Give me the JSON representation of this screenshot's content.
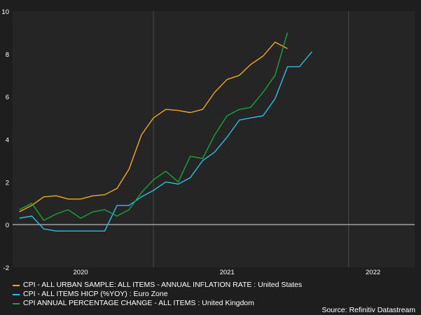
{
  "chart_data": {
    "type": "line",
    "ylim": [
      -2,
      10
    ],
    "yticks": [
      -2,
      0,
      2,
      4,
      6,
      8,
      10
    ],
    "xlim": [
      "2019-07-15",
      "2022-04-15"
    ],
    "xticks": [
      {
        "label": "2020",
        "date": "2020-01-01"
      },
      {
        "label": "2021",
        "date": "2021-01-01"
      },
      {
        "label": "2022",
        "date": "2022-01-01"
      }
    ],
    "vertical_gridlines": [
      "2020-07-01",
      "2021-11-01"
    ],
    "zero_line": true,
    "legend_position": "bottom-left",
    "source": "Source: Refinitiv Datastream",
    "series": [
      {
        "name": "CPI - ALL URBAN SAMPLE: ALL ITEMS - ANNUAL INFLATION RATE : United States",
        "color": "#f5a623",
        "points": [
          [
            "2019-08-01",
            0.6
          ],
          [
            "2019-09-01",
            0.9
          ],
          [
            "2019-10-01",
            1.3
          ],
          [
            "2019-11-01",
            1.35
          ],
          [
            "2019-12-01",
            1.2
          ],
          [
            "2020-01-01",
            1.2
          ],
          [
            "2020-02-01",
            1.35
          ],
          [
            "2020-03-01",
            1.4
          ],
          [
            "2020-04-01",
            1.7
          ],
          [
            "2020-05-01",
            2.6
          ],
          [
            "2020-06-01",
            4.2
          ],
          [
            "2020-07-01",
            5.0
          ],
          [
            "2020-08-01",
            5.4
          ],
          [
            "2020-09-01",
            5.35
          ],
          [
            "2020-10-01",
            5.25
          ],
          [
            "2020-11-01",
            5.4
          ],
          [
            "2020-12-01",
            6.2
          ],
          [
            "2021-01-01",
            6.8
          ],
          [
            "2021-02-01",
            7.0
          ],
          [
            "2021-03-01",
            7.5
          ],
          [
            "2021-04-01",
            7.9
          ],
          [
            "2021-05-01",
            8.55
          ],
          [
            "2021-06-01",
            8.25
          ]
        ]
      },
      {
        "name": "CPI - ALL ITEMS HICP (%YOY) : Euro Zone",
        "color": "#2bbfe8",
        "points": [
          [
            "2019-08-01",
            0.3
          ],
          [
            "2019-09-01",
            0.4
          ],
          [
            "2019-10-01",
            -0.2
          ],
          [
            "2019-11-01",
            -0.3
          ],
          [
            "2019-12-01",
            -0.3
          ],
          [
            "2020-01-01",
            -0.3
          ],
          [
            "2020-02-01",
            -0.3
          ],
          [
            "2020-03-01",
            -0.3
          ],
          [
            "2020-04-01",
            0.9
          ],
          [
            "2020-05-01",
            0.9
          ],
          [
            "2020-06-01",
            1.3
          ],
          [
            "2020-07-01",
            1.6
          ],
          [
            "2020-08-01",
            2.0
          ],
          [
            "2020-09-01",
            1.9
          ],
          [
            "2020-10-01",
            2.2
          ],
          [
            "2020-11-01",
            3.0
          ],
          [
            "2020-12-01",
            3.4
          ],
          [
            "2021-01-01",
            4.1
          ],
          [
            "2021-02-01",
            4.9
          ],
          [
            "2021-03-01",
            5.0
          ],
          [
            "2021-04-01",
            5.1
          ],
          [
            "2021-05-01",
            5.9
          ],
          [
            "2021-06-01",
            7.4
          ],
          [
            "2021-07-01",
            7.4
          ],
          [
            "2021-08-01",
            8.1
          ]
        ]
      },
      {
        "name": "CPI ANNUAL PERCENTAGE CHANGE - ALL ITEMS : United Kingdom",
        "color": "#1aa33a",
        "points": [
          [
            "2019-08-01",
            0.7
          ],
          [
            "2019-09-01",
            1.0
          ],
          [
            "2019-10-01",
            0.2
          ],
          [
            "2019-11-01",
            0.5
          ],
          [
            "2019-12-01",
            0.7
          ],
          [
            "2020-01-01",
            0.3
          ],
          [
            "2020-02-01",
            0.6
          ],
          [
            "2020-03-01",
            0.7
          ],
          [
            "2020-04-01",
            0.4
          ],
          [
            "2020-05-01",
            0.7
          ],
          [
            "2020-06-01",
            1.5
          ],
          [
            "2020-07-01",
            2.1
          ],
          [
            "2020-08-01",
            2.5
          ],
          [
            "2020-09-01",
            2.0
          ],
          [
            "2020-10-01",
            3.2
          ],
          [
            "2020-11-01",
            3.1
          ],
          [
            "2020-12-01",
            4.2
          ],
          [
            "2021-01-01",
            5.1
          ],
          [
            "2021-02-01",
            5.4
          ],
          [
            "2021-03-01",
            5.5
          ],
          [
            "2021-04-01",
            6.2
          ],
          [
            "2021-05-01",
            7.0
          ],
          [
            "2021-06-01",
            9.0
          ]
        ]
      }
    ]
  }
}
